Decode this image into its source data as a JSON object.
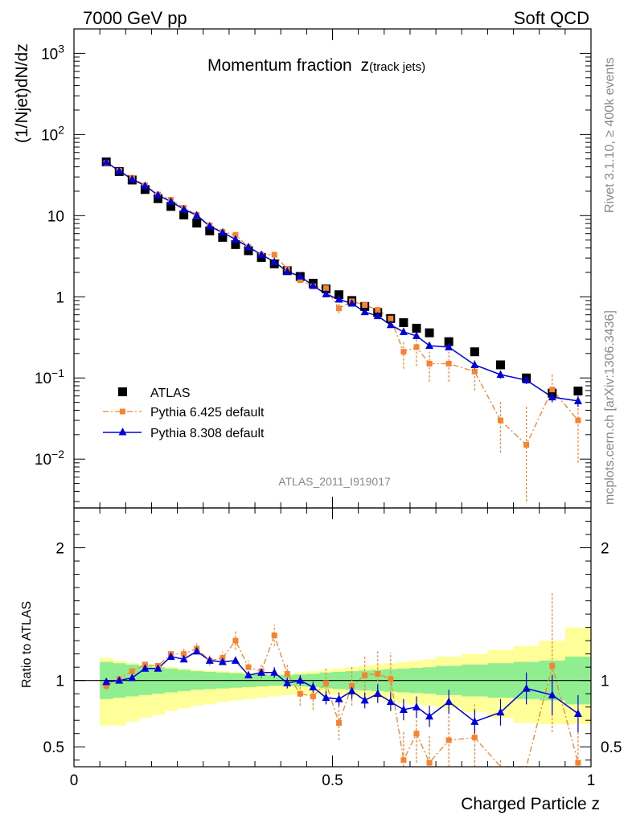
{
  "header": {
    "left": "7000 GeV pp",
    "right": "Soft QCD"
  },
  "side_text": {
    "rivet": "Rivet 3.1.10, ≥ 400k events",
    "mcplots": "mcplots.cern.ch [arXiv:1306.3436]"
  },
  "chart_data": {
    "type": "scatter",
    "title": "Momentum fraction",
    "title_var": "z",
    "title_sub": "(track jets)",
    "analysis_id": "ATLAS_2011_I919017",
    "xlabel": "Charged Particle z",
    "ylabel_main": "(1/Njet)dN/dz",
    "ylabel_ratio": "Ratio to ATLAS",
    "xlim": [
      0,
      1
    ],
    "ylim_main": [
      0.0025,
      2000
    ],
    "yscale_main": "log",
    "ylim_ratio": [
      0.35,
      2.3
    ],
    "x_ticks": [
      {
        "value": 0,
        "label": "0"
      },
      {
        "value": 0.5,
        "label": "0.5"
      },
      {
        "value": 1,
        "label": "1"
      }
    ],
    "y_ticks_main": [
      {
        "value": 0.01,
        "label": "10",
        "sup": "−2"
      },
      {
        "value": 0.1,
        "label": "10",
        "sup": "−1"
      },
      {
        "value": 1,
        "label": "1",
        "sup": ""
      },
      {
        "value": 10,
        "label": "10",
        "sup": ""
      },
      {
        "value": 100,
        "label": "10",
        "sup": "2"
      },
      {
        "value": 1000,
        "label": "10",
        "sup": "3"
      }
    ],
    "y_ticks_ratio": [
      {
        "value": 0.5,
        "label": "0.5"
      },
      {
        "value": 1,
        "label": "1"
      },
      {
        "value": 2,
        "label": "2"
      }
    ],
    "legend_position": "bottom-left",
    "x": [
      0.0625,
      0.0875,
      0.1125,
      0.1375,
      0.1625,
      0.1875,
      0.2125,
      0.2375,
      0.2625,
      0.2875,
      0.3125,
      0.3375,
      0.3625,
      0.3875,
      0.4125,
      0.4375,
      0.4625,
      0.4875,
      0.5125,
      0.5375,
      0.5625,
      0.5875,
      0.6125,
      0.6375,
      0.6625,
      0.6875,
      0.725,
      0.775,
      0.825,
      0.875,
      0.925,
      0.975
    ],
    "band_edges": [
      0.05,
      0.075,
      0.1,
      0.125,
      0.15,
      0.175,
      0.2,
      0.225,
      0.25,
      0.275,
      0.3,
      0.325,
      0.35,
      0.375,
      0.4,
      0.425,
      0.45,
      0.475,
      0.5,
      0.525,
      0.55,
      0.575,
      0.6,
      0.625,
      0.65,
      0.675,
      0.7,
      0.75,
      0.8,
      0.85,
      0.9,
      0.95,
      1.0
    ],
    "band_stat_low": [
      0.86,
      0.87,
      0.88,
      0.89,
      0.9,
      0.91,
      0.92,
      0.93,
      0.935,
      0.94,
      0.945,
      0.95,
      0.955,
      0.96,
      0.96,
      0.955,
      0.95,
      0.94,
      0.935,
      0.93,
      0.925,
      0.92,
      0.915,
      0.91,
      0.905,
      0.9,
      0.89,
      0.88,
      0.87,
      0.86,
      0.85,
      0.82
    ],
    "band_stat_high": [
      1.14,
      1.13,
      1.12,
      1.11,
      1.1,
      1.09,
      1.08,
      1.07,
      1.065,
      1.06,
      1.055,
      1.05,
      1.045,
      1.04,
      1.04,
      1.045,
      1.05,
      1.06,
      1.065,
      1.07,
      1.075,
      1.08,
      1.085,
      1.09,
      1.095,
      1.1,
      1.11,
      1.12,
      1.13,
      1.14,
      1.15,
      1.18
    ],
    "band_total_low": [
      0.66,
      0.66,
      0.69,
      0.72,
      0.74,
      0.77,
      0.79,
      0.81,
      0.82,
      0.84,
      0.85,
      0.86,
      0.87,
      0.88,
      0.89,
      0.9,
      0.9,
      0.9,
      0.89,
      0.88,
      0.87,
      0.86,
      0.84,
      0.83,
      0.82,
      0.81,
      0.79,
      0.76,
      0.72,
      0.68,
      0.67,
      0.67
    ],
    "band_total_high": [
      1.17,
      1.15,
      1.13,
      1.12,
      1.11,
      1.1,
      1.09,
      1.08,
      1.075,
      1.07,
      1.065,
      1.06,
      1.055,
      1.05,
      1.05,
      1.06,
      1.07,
      1.08,
      1.09,
      1.1,
      1.11,
      1.12,
      1.13,
      1.14,
      1.15,
      1.16,
      1.18,
      1.2,
      1.23,
      1.26,
      1.3,
      1.4
    ],
    "series": [
      {
        "name": "ATLAS",
        "color": "#000000",
        "marker": "square",
        "values": [
          46,
          35,
          27.5,
          21,
          16.2,
          13,
          10.2,
          8.1,
          6.5,
          5.4,
          4.4,
          3.7,
          3.05,
          2.55,
          2.1,
          1.78,
          1.47,
          1.25,
          1.06,
          0.9,
          0.76,
          0.64,
          0.54,
          0.48,
          0.41,
          0.36,
          0.28,
          0.21,
          0.145,
          0.1,
          0.065,
          0.069
        ]
      },
      {
        "name": "Pythia 6.425 default",
        "color": "#f5832f",
        "marker": "square",
        "line": "dashdot",
        "values": [
          44.5,
          35.8,
          29.3,
          23.6,
          18.2,
          15.7,
          12.5,
          10.2,
          7.6,
          6.3,
          5.8,
          4.1,
          3.3,
          3.3,
          2.2,
          1.6,
          1.35,
          1.28,
          0.72,
          0.88,
          0.79,
          0.69,
          0.54,
          0.21,
          0.24,
          0.15,
          0.15,
          0.12,
          0.03,
          0.015,
          0.072,
          0.03
        ],
        "err_low": [
          0,
          0,
          0,
          0,
          0,
          0,
          0,
          0,
          0,
          0,
          0.4,
          0,
          0,
          0.3,
          0,
          0.1,
          0.1,
          0.1,
          0.1,
          0.1,
          0.08,
          0.08,
          0.08,
          0.08,
          0.1,
          0.06,
          0.06,
          0.05,
          0.018,
          0.012,
          0.02,
          0.021
        ],
        "err_high": [
          0,
          0,
          0,
          0,
          0,
          0,
          0,
          0,
          0,
          0,
          0.4,
          0,
          0,
          0.3,
          0,
          0.1,
          0.1,
          0.1,
          0.1,
          0.1,
          0.08,
          0.08,
          0.08,
          0.08,
          0.1,
          0.06,
          0.06,
          0.05,
          0.022,
          0.03,
          0.04,
          0.03
        ]
      },
      {
        "name": "Pythia 8.308 default",
        "color": "#0000dd",
        "marker": "triangle",
        "line": "solid",
        "values": [
          45.8,
          35.4,
          28.2,
          23.3,
          17.9,
          14.9,
          12,
          10.1,
          7.4,
          6.2,
          5.1,
          4.1,
          3.3,
          2.7,
          2.05,
          1.79,
          1.37,
          1.08,
          0.93,
          0.83,
          0.65,
          0.58,
          0.45,
          0.37,
          0.33,
          0.25,
          0.24,
          0.145,
          0.11,
          0.094,
          0.058,
          0.052
        ],
        "err_low": [
          0,
          0,
          0,
          0,
          0,
          0,
          0,
          0,
          0,
          0,
          0,
          0,
          0,
          0.1,
          0.08,
          0.06,
          0.06,
          0.05,
          0.04,
          0.04,
          0.04,
          0.04,
          0.03,
          0.03,
          0.03,
          0.02,
          0.02,
          0.015,
          0.012,
          0.01,
          0.008,
          0.008
        ],
        "err_high": [
          0,
          0,
          0,
          0,
          0,
          0,
          0,
          0,
          0,
          0,
          0,
          0,
          0,
          0.1,
          0.08,
          0.06,
          0.06,
          0.05,
          0.04,
          0.04,
          0.04,
          0.04,
          0.03,
          0.03,
          0.03,
          0.02,
          0.02,
          0.015,
          0.012,
          0.01,
          0.008,
          0.008
        ]
      }
    ],
    "ratio_series": [
      {
        "name": "Pythia 6.425 default",
        "color": "#f5832f",
        "values": [
          0.96,
          1.01,
          1.07,
          1.12,
          1.11,
          1.2,
          1.2,
          1.24,
          1.15,
          1.17,
          1.3,
          1.1,
          1.07,
          1.34,
          1.05,
          0.9,
          0.88,
          0.98,
          0.68,
          0.96,
          1.04,
          1.05,
          1.01,
          0.4,
          0.6,
          0.38,
          0.55,
          0.57,
          0.2,
          0.15,
          1.11,
          0.38
        ],
        "err_low": [
          0.03,
          0.03,
          0.03,
          0.03,
          0.03,
          0.03,
          0.04,
          0.04,
          0.04,
          0.05,
          0.07,
          0.05,
          0.06,
          0.08,
          0.07,
          0.09,
          0.1,
          0.12,
          0.13,
          0.15,
          0.15,
          0.18,
          0.2,
          0.22,
          0.22,
          0.2,
          0.2,
          0.25,
          0.2,
          0.15,
          0.5,
          0.3
        ],
        "err_high": [
          0.03,
          0.03,
          0.03,
          0.03,
          0.03,
          0.03,
          0.04,
          0.04,
          0.04,
          0.05,
          0.07,
          0.05,
          0.06,
          0.08,
          0.07,
          0.09,
          0.1,
          0.12,
          0.13,
          0.15,
          0.15,
          0.18,
          0.2,
          0.22,
          0.22,
          0.2,
          0.2,
          0.25,
          0.2,
          0.15,
          0.55,
          0.3
        ]
      },
      {
        "name": "Pythia 8.308 default",
        "color": "#0000dd",
        "values": [
          0.99,
          1.0,
          1.02,
          1.09,
          1.09,
          1.18,
          1.16,
          1.22,
          1.15,
          1.14,
          1.15,
          1.04,
          1.06,
          1.06,
          0.98,
          1.0,
          0.95,
          0.87,
          0.86,
          0.92,
          0.85,
          0.9,
          0.84,
          0.78,
          0.8,
          0.73,
          0.84,
          0.69,
          0.76,
          0.94,
          0.89,
          0.75
        ],
        "err_low": [
          0.02,
          0.02,
          0.02,
          0.02,
          0.02,
          0.02,
          0.02,
          0.02,
          0.02,
          0.02,
          0.02,
          0.02,
          0.03,
          0.04,
          0.04,
          0.04,
          0.04,
          0.05,
          0.05,
          0.06,
          0.06,
          0.07,
          0.07,
          0.08,
          0.08,
          0.08,
          0.09,
          0.09,
          0.1,
          0.12,
          0.15,
          0.14
        ],
        "err_high": [
          0.02,
          0.02,
          0.02,
          0.02,
          0.02,
          0.02,
          0.02,
          0.02,
          0.02,
          0.02,
          0.02,
          0.02,
          0.03,
          0.04,
          0.04,
          0.04,
          0.04,
          0.05,
          0.05,
          0.06,
          0.06,
          0.07,
          0.07,
          0.08,
          0.08,
          0.08,
          0.09,
          0.09,
          0.1,
          0.12,
          0.15,
          0.14
        ]
      }
    ]
  }
}
